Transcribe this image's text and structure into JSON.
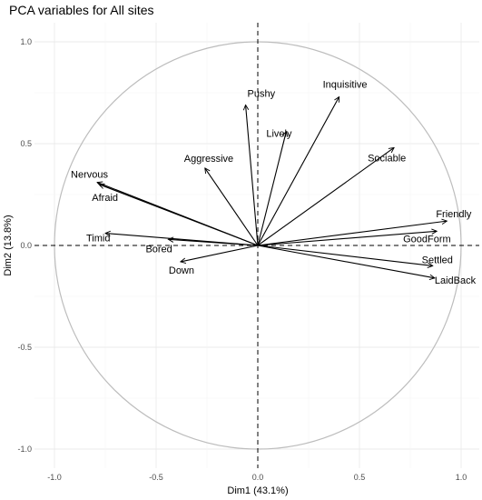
{
  "chart_data": {
    "type": "scatter",
    "title": "PCA variables for All sites",
    "xlabel": "Dim1 (43.1%)",
    "ylabel": "Dim2 (13.8%)",
    "xlim": [
      -1.0,
      1.0
    ],
    "ylim": [
      -1.0,
      1.0
    ],
    "xticks": [
      "-1.0",
      "-0.5",
      "0.0",
      "0.5",
      "1.0"
    ],
    "yticks": [
      "-1.0",
      "-0.5",
      "0.0",
      "0.5",
      "1.0"
    ],
    "grid": true,
    "correlation_circle": true,
    "reference_lines": [
      0,
      0
    ],
    "variables": [
      {
        "name": "Pushy",
        "x": -0.06,
        "y": 0.69
      },
      {
        "name": "Inquisitive",
        "x": 0.4,
        "y": 0.73
      },
      {
        "name": "Lively",
        "x": 0.14,
        "y": 0.56
      },
      {
        "name": "Sociable",
        "x": 0.67,
        "y": 0.48
      },
      {
        "name": "Aggressive",
        "x": -0.26,
        "y": 0.38
      },
      {
        "name": "Nervous",
        "x": -0.79,
        "y": 0.31
      },
      {
        "name": "Afraid",
        "x": -0.78,
        "y": 0.3
      },
      {
        "name": "Friendly",
        "x": 0.93,
        "y": 0.12
      },
      {
        "name": "GoodForm",
        "x": 0.88,
        "y": 0.07
      },
      {
        "name": "Timid",
        "x": -0.75,
        "y": 0.06
      },
      {
        "name": "Bored",
        "x": -0.44,
        "y": 0.03
      },
      {
        "name": "Down",
        "x": -0.38,
        "y": -0.08
      },
      {
        "name": "Settled",
        "x": 0.86,
        "y": -0.1
      },
      {
        "name": "LaidBack",
        "x": 0.87,
        "y": -0.16
      }
    ]
  }
}
